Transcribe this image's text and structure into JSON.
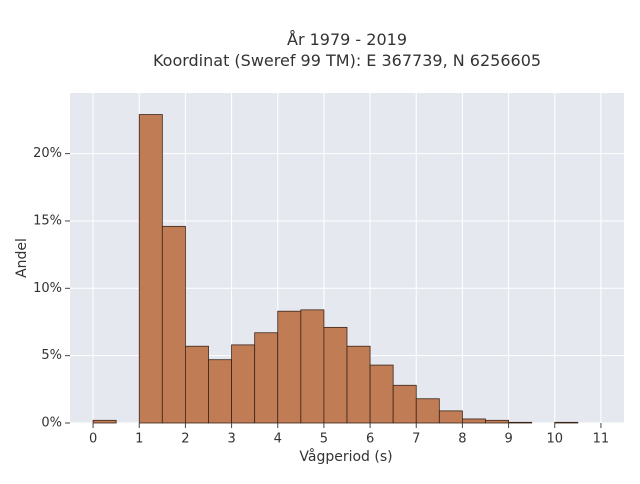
{
  "chart_data": {
    "type": "bar",
    "title_lines": [
      "År 1979 - 2019",
      "Koordinat (Sweref 99 TM): E 367739, N 6256605"
    ],
    "xlabel": "Vågperiod (s)",
    "ylabel": "Andel",
    "xlim": [
      -0.5,
      11.5
    ],
    "ylim": [
      0,
      24.5
    ],
    "x_ticks": [
      0,
      1,
      2,
      3,
      4,
      5,
      6,
      7,
      8,
      9,
      10,
      11
    ],
    "x_tick_labels": [
      "0",
      "1",
      "2",
      "3",
      "4",
      "5",
      "6",
      "7",
      "8",
      "9",
      "10",
      "11"
    ],
    "y_ticks": [
      0,
      5,
      10,
      15,
      20
    ],
    "y_tick_labels": [
      "0%",
      "5%",
      "10%",
      "15%",
      "20%"
    ],
    "bin_width": 0.5,
    "bin_starts": [
      0,
      1,
      1.5,
      2,
      2.5,
      3,
      3.5,
      4,
      4.5,
      5,
      5.5,
      6,
      6.5,
      7,
      7.5,
      8,
      8.5,
      9,
      10
    ],
    "values": [
      0.2,
      22.9,
      14.6,
      5.7,
      4.7,
      5.8,
      6.7,
      8.3,
      8.4,
      7.1,
      5.7,
      4.3,
      2.8,
      1.8,
      0.9,
      0.3,
      0.2,
      0.05,
      0.05
    ],
    "grid": true,
    "colors": {
      "bar_fill": "#c07c55",
      "bar_stroke": "#3a2418",
      "plot_bg": "#e6e8f0",
      "grid": "#ffffff"
    }
  }
}
